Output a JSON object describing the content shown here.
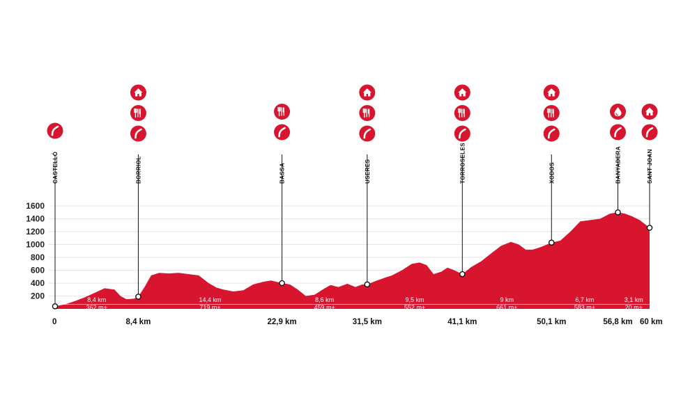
{
  "chart_data": {
    "type": "area",
    "title": "",
    "xlabel": "",
    "ylabel": "",
    "x_unit": "km",
    "xlim": [
      0,
      60
    ],
    "ylim": [
      0,
      1800
    ],
    "y_ticks": [
      200,
      400,
      600,
      800,
      1000,
      1200,
      1400,
      1600
    ],
    "grid": true,
    "colors": {
      "profile": "#d8152f",
      "icon": "#d8152f",
      "grid": "#e6e6e6"
    },
    "profile": {
      "x": [
        0,
        1.0,
        2.0,
        3.0,
        4.0,
        5.0,
        6.0,
        6.6,
        7.2,
        8.0,
        8.4,
        9.0,
        9.7,
        10.5,
        11.5,
        12.5,
        13.5,
        14.5,
        15.5,
        16.3,
        17.0,
        18.0,
        19.0,
        20.0,
        21.0,
        21.8,
        22.9,
        23.7,
        24.5,
        25.3,
        26.2,
        27.0,
        27.8,
        28.6,
        29.5,
        30.3,
        31.0,
        31.5,
        32.3,
        33.2,
        34.0,
        35.0,
        36.0,
        36.8,
        37.5,
        38.2,
        39.0,
        39.6,
        40.3,
        41.1,
        42.0,
        43.0,
        44.0,
        45.0,
        46.0,
        46.8,
        47.5,
        48.2,
        49.0,
        50.1,
        51.0,
        52.0,
        53.0,
        54.0,
        55.0,
        56.0,
        56.8,
        57.5,
        58.2,
        59.0,
        60.0
      ],
      "y": [
        40,
        70,
        120,
        180,
        250,
        320,
        300,
        200,
        150,
        160,
        190,
        330,
        520,
        560,
        550,
        560,
        540,
        520,
        400,
        330,
        300,
        270,
        290,
        380,
        420,
        440,
        400,
        380,
        300,
        200,
        220,
        300,
        370,
        340,
        390,
        340,
        380,
        380,
        430,
        480,
        520,
        600,
        700,
        720,
        680,
        540,
        580,
        640,
        600,
        540,
        650,
        740,
        860,
        980,
        1040,
        1000,
        920,
        920,
        960,
        1030,
        1060,
        1200,
        1360,
        1380,
        1400,
        1480,
        1500,
        1480,
        1440,
        1380,
        1260
      ]
    },
    "waypoints": [
      {
        "name": "CASTELLÓ",
        "km": 0,
        "km_label": "0",
        "alt": 40,
        "services": [
          "road"
        ]
      },
      {
        "name": "BORRIOL",
        "km": 8.4,
        "km_label": "8,4 km",
        "alt": 190,
        "services": [
          "house",
          "food",
          "road"
        ]
      },
      {
        "name": "BASSA",
        "km": 22.9,
        "km_label": "22,9 km",
        "alt": 400,
        "services": [
          "food",
          "road"
        ]
      },
      {
        "name": "USERES",
        "km": 31.5,
        "km_label": "31,5 km",
        "alt": 380,
        "services": [
          "house",
          "food",
          "road"
        ]
      },
      {
        "name": "TORROSELES",
        "km": 41.1,
        "km_label": "41,1 km",
        "alt": 540,
        "services": [
          "house",
          "food",
          "road"
        ]
      },
      {
        "name": "XODOS",
        "km": 50.1,
        "km_label": "50,1 km",
        "alt": 1030,
        "services": [
          "house",
          "food",
          "road"
        ]
      },
      {
        "name": "BANYADERA",
        "km": 56.8,
        "km_label": "56,8 km",
        "alt": 1500,
        "services": [
          "water",
          "road"
        ]
      },
      {
        "name": "SANT JOAN",
        "km": 60,
        "km_label": "60 km",
        "alt": 1260,
        "services": [
          "house",
          "road"
        ]
      }
    ],
    "segments": [
      {
        "distance": "8,4 km",
        "ascent": "362 m+"
      },
      {
        "distance": "14,4 km",
        "ascent": "719 m+"
      },
      {
        "distance": "8,6 km",
        "ascent": "459 m+"
      },
      {
        "distance": "9,5 km",
        "ascent": "552 m+"
      },
      {
        "distance": "9 km",
        "ascent": "661 m+"
      },
      {
        "distance": "6,7 km",
        "ascent": "583 m+"
      },
      {
        "distance": "3,1 km",
        "ascent": "20 m+"
      }
    ]
  }
}
